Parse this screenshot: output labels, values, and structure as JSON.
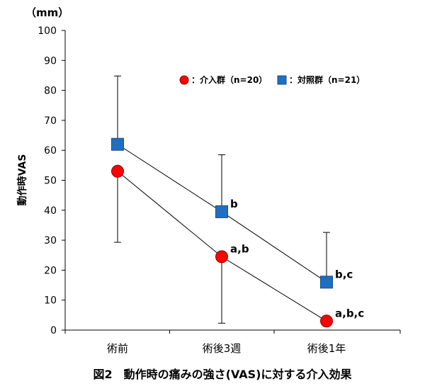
{
  "chart_data": {
    "type": "line",
    "caption": "図2　動作時の痛みの強さ(VAS)に対する介入効果",
    "unit": "（mm）",
    "ylabel": "動作時VAS",
    "ylim": [
      0,
      100
    ],
    "yticks": [
      0,
      10,
      20,
      30,
      40,
      50,
      60,
      70,
      80,
      90,
      100
    ],
    "categories": [
      "術前",
      "術後3週",
      "術後1年"
    ],
    "series": [
      {
        "name": "：介入群（n=20）",
        "marker": "circle",
        "color": "#ff0000",
        "values": [
          53,
          24.5,
          3
        ],
        "error_lower": [
          29.3,
          2.3,
          null
        ],
        "error_upper": [
          null,
          null,
          null
        ],
        "labels": [
          "",
          "a,b",
          "a,b,c"
        ]
      },
      {
        "name": "：対照群（n=21）",
        "marker": "square",
        "color": "#1f6fc0",
        "values": [
          62,
          39.5,
          16
        ],
        "error_lower": [
          null,
          null,
          null
        ],
        "error_upper": [
          84.8,
          58.5,
          32.6
        ],
        "labels": [
          "",
          "b",
          "b,c"
        ]
      }
    ]
  }
}
